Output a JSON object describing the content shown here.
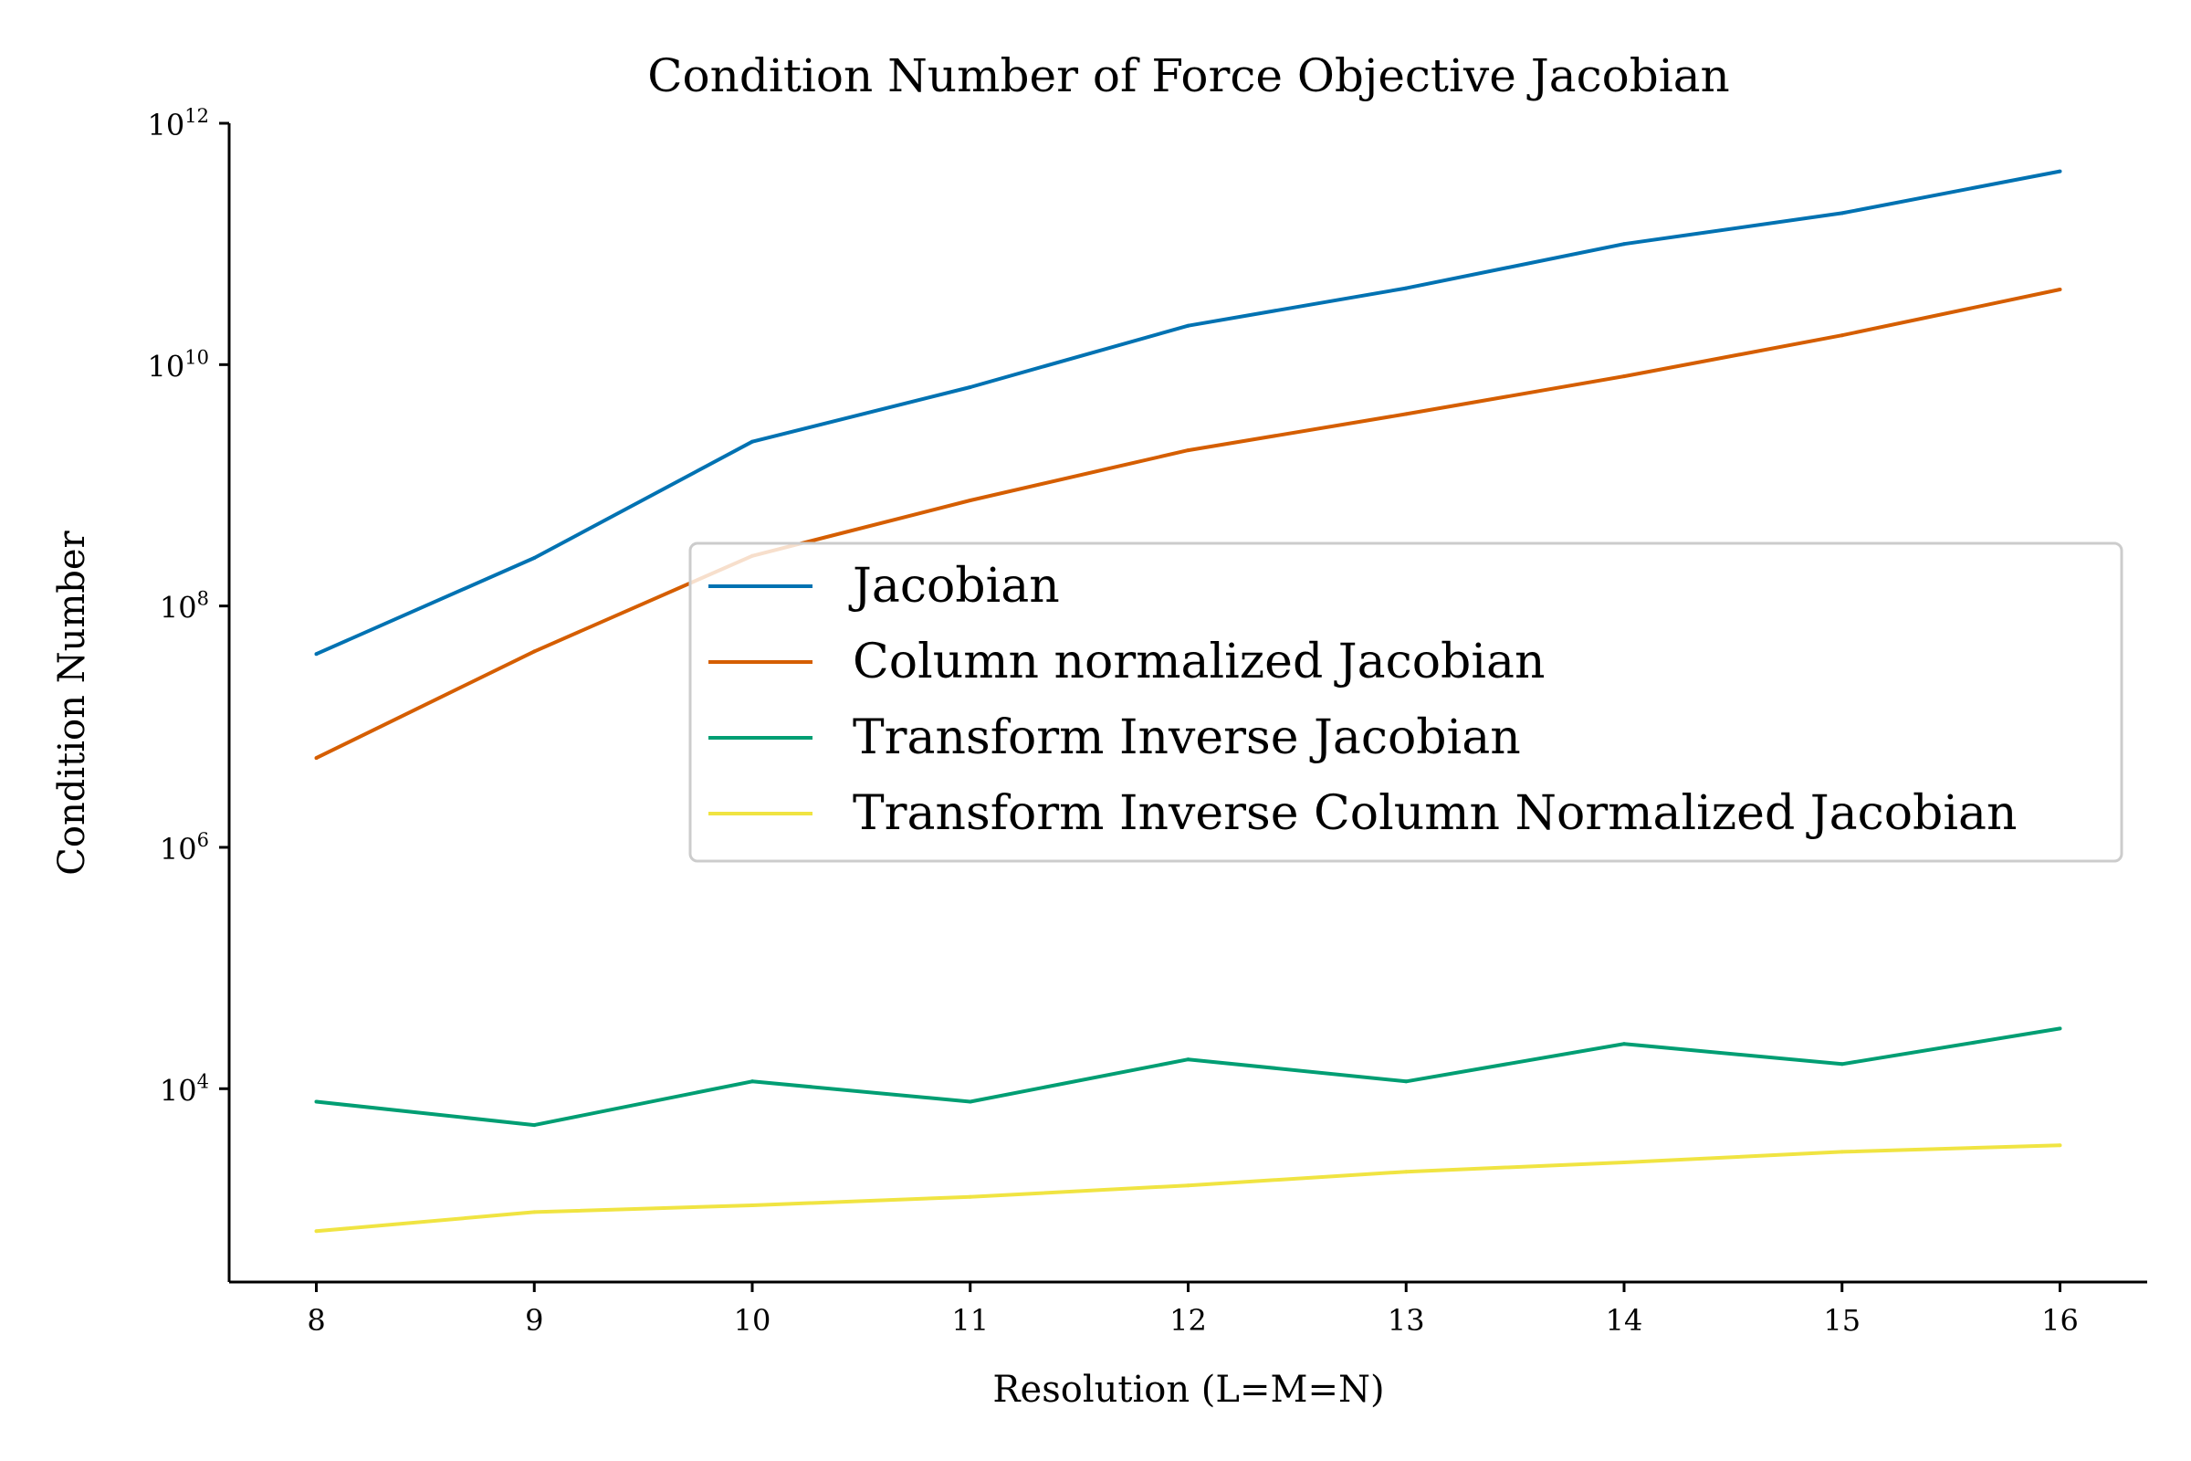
{
  "chart_data": {
    "type": "line",
    "title": "Condition Number of Force Objective Jacobian",
    "xlabel": "Resolution (L=M=N)",
    "ylabel": "Condition Number",
    "yscale": "log",
    "xlim": [
      7.6,
      16.4
    ],
    "ylim": [
      250,
      1000000000000.0
    ],
    "x": [
      8,
      9,
      10,
      11,
      12,
      13,
      14,
      15,
      16
    ],
    "xticks": [
      "8",
      "9",
      "10",
      "11",
      "12",
      "13",
      "14",
      "15",
      "16"
    ],
    "yticks": [
      {
        "value": 10000,
        "base": "10",
        "exp": "4"
      },
      {
        "value": 1000000,
        "base": "10",
        "exp": "6"
      },
      {
        "value": 100000000,
        "base": "10",
        "exp": "8"
      },
      {
        "value": 10000000000,
        "base": "10",
        "exp": "10"
      },
      {
        "value": 1000000000000,
        "base": "10",
        "exp": "12"
      }
    ],
    "grid": false,
    "legend": "center-right",
    "series": [
      {
        "name": "Jacobian",
        "color": "#0072b2",
        "values": [
          40000000.0,
          250000000.0,
          2300000000.0,
          6500000000.0,
          21000000000.0,
          43000000000.0,
          100000000000.0,
          180000000000.0,
          400000000000.0
        ]
      },
      {
        "name": "Column normalized Jacobian",
        "color": "#d55e00",
        "values": [
          5500000.0,
          42000000.0,
          260000000.0,
          750000000.0,
          1950000000.0,
          3900000000.0,
          8000000000.0,
          17500000000.0,
          42000000000.0
        ]
      },
      {
        "name": "Transform Inverse Jacobian",
        "color": "#009e73",
        "values": [
          7800,
          5000,
          11500,
          7800,
          17500,
          11500,
          23500,
          16000,
          31500
        ]
      },
      {
        "name": "Transform Inverse Column Normalized Jacobian",
        "color": "#f0e442",
        "values": [
          660,
          950,
          1080,
          1270,
          1580,
          2050,
          2450,
          3000,
          3400
        ]
      }
    ]
  }
}
